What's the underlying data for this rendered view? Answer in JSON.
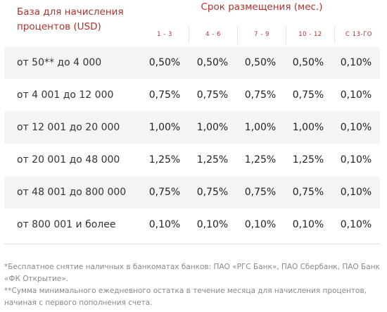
{
  "header": {
    "base_label_line1": "База для начисления",
    "base_label_line2": "процентов (USD)",
    "period_title": "Срок размещения (мес.)",
    "terms": [
      "1 - 3",
      "4 - 6",
      "7 - 9",
      "10 - 12",
      "С 13-ГО"
    ]
  },
  "rows": [
    {
      "label": "от 50** до 4 000",
      "values": [
        "0,50%",
        "0,50%",
        "0,50%",
        "0,50%",
        "0,10%"
      ]
    },
    {
      "label": "от 4 001 до 12 000",
      "values": [
        "0,75%",
        "0,75%",
        "0,75%",
        "0,75%",
        "0,10%"
      ]
    },
    {
      "label": "от 12 001 до 20 000",
      "values": [
        "1,00%",
        "1,00%",
        "1,00%",
        "1,00%",
        "0,10%"
      ]
    },
    {
      "label": "от 20 001 до 48 000",
      "values": [
        "1,25%",
        "1,25%",
        "1,25%",
        "1,25%",
        "0,10%"
      ]
    },
    {
      "label": "от 48 001 до 800 000",
      "values": [
        "0,75%",
        "0,75%",
        "0,75%",
        "0,75%",
        "0,10%"
      ]
    },
    {
      "label": "от 800 001 и более",
      "values": [
        "0,10%",
        "0,10%",
        "0,10%",
        "0,10%",
        "0,10%"
      ]
    }
  ],
  "footnotes": {
    "line1": "*Бесплатное снятие наличных в банкоматах банков: ПАО «РГС Банк», ПАО Сбербанк, ПАО Банк",
    "line2": "«ФК Открытие».",
    "line3": "**Сумма минимального ежедневного остатка в течение месяца для начисления процентов,",
    "line4": "начиная с первого пополнения счета."
  },
  "colors": {
    "accent": "#b0322c",
    "stripe": "#f4f4f4",
    "text": "#333333",
    "note": "#888888"
  }
}
